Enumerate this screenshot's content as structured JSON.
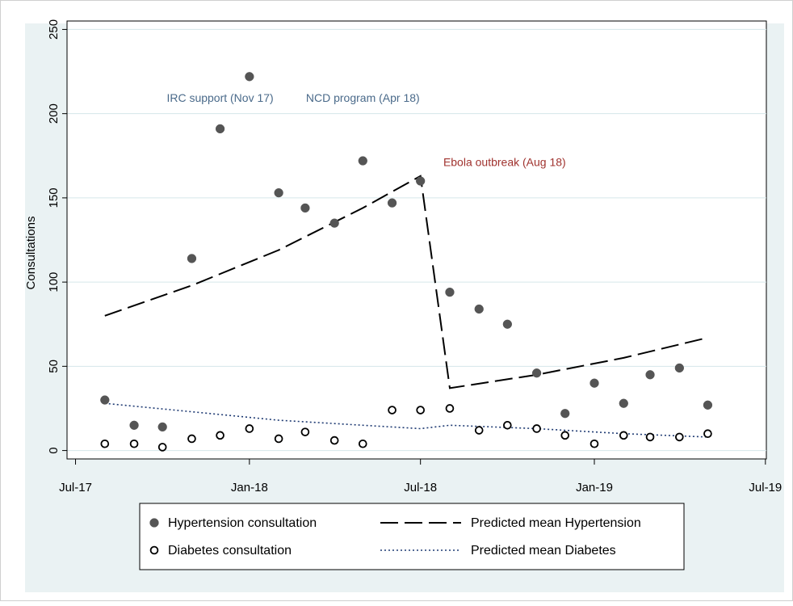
{
  "chart_data": {
    "type": "scatter",
    "ylabel": "Consultations",
    "xlabel": "",
    "x_axis": {
      "type": "date",
      "ticks": [
        {
          "date": "2017-07-01",
          "label": "Jul-17"
        },
        {
          "date": "2018-01-01",
          "label": "Jan-18"
        },
        {
          "date": "2018-07-01",
          "label": "Jul-18"
        },
        {
          "date": "2019-01-01",
          "label": "Jan-19"
        },
        {
          "date": "2019-07-01",
          "label": "Jul-19"
        }
      ],
      "range": [
        "2017-06-22",
        "2019-07-02"
      ]
    },
    "y_axis": {
      "range": [
        -5,
        255
      ],
      "ticks": [
        0,
        50,
        100,
        150,
        200,
        250
      ]
    },
    "grid": true,
    "series": [
      {
        "name": "Hypertension consultation",
        "kind": "points",
        "marker": "filled-circle",
        "color": "#555555",
        "points": [
          {
            "x": "2017-08-01",
            "y": 30
          },
          {
            "x": "2017-09-01",
            "y": 15
          },
          {
            "x": "2017-10-01",
            "y": 14
          },
          {
            "x": "2017-11-01",
            "y": 114
          },
          {
            "x": "2017-12-01",
            "y": 191
          },
          {
            "x": "2018-01-01",
            "y": 222
          },
          {
            "x": "2018-02-01",
            "y": 153
          },
          {
            "x": "2018-03-01",
            "y": 144
          },
          {
            "x": "2018-04-01",
            "y": 135
          },
          {
            "x": "2018-05-01",
            "y": 172
          },
          {
            "x": "2018-06-01",
            "y": 147
          },
          {
            "x": "2018-07-01",
            "y": 160
          },
          {
            "x": "2018-08-01",
            "y": 94
          },
          {
            "x": "2018-09-01",
            "y": 84
          },
          {
            "x": "2018-10-01",
            "y": 75
          },
          {
            "x": "2018-11-01",
            "y": 46
          },
          {
            "x": "2018-12-01",
            "y": 22
          },
          {
            "x": "2019-01-01",
            "y": 40
          },
          {
            "x": "2019-02-01",
            "y": 28
          },
          {
            "x": "2019-03-01",
            "y": 45
          },
          {
            "x": "2019-04-01",
            "y": 49
          },
          {
            "x": "2019-05-01",
            "y": 27
          }
        ]
      },
      {
        "name": "Diabetes consultation",
        "kind": "points",
        "marker": "hollow-circle",
        "color": "#000000",
        "points": [
          {
            "x": "2017-08-01",
            "y": 4
          },
          {
            "x": "2017-09-01",
            "y": 4
          },
          {
            "x": "2017-10-01",
            "y": 2
          },
          {
            "x": "2017-11-01",
            "y": 7
          },
          {
            "x": "2017-12-01",
            "y": 9
          },
          {
            "x": "2018-01-01",
            "y": 13
          },
          {
            "x": "2018-02-01",
            "y": 7
          },
          {
            "x": "2018-03-01",
            "y": 11
          },
          {
            "x": "2018-04-01",
            "y": 6
          },
          {
            "x": "2018-05-01",
            "y": 4
          },
          {
            "x": "2018-06-01",
            "y": 24
          },
          {
            "x": "2018-07-01",
            "y": 24
          },
          {
            "x": "2018-08-01",
            "y": 25
          },
          {
            "x": "2018-09-01",
            "y": 12
          },
          {
            "x": "2018-10-01",
            "y": 15
          },
          {
            "x": "2018-11-01",
            "y": 13
          },
          {
            "x": "2018-12-01",
            "y": 9
          },
          {
            "x": "2019-01-01",
            "y": 4
          },
          {
            "x": "2019-02-01",
            "y": 9
          },
          {
            "x": "2019-03-01",
            "y": 8
          },
          {
            "x": "2019-04-01",
            "y": 8
          },
          {
            "x": "2019-05-01",
            "y": 10
          }
        ]
      },
      {
        "name": "Predicted mean Hypertension",
        "kind": "line",
        "style": "long-dash",
        "color": "#000000",
        "points": [
          {
            "x": "2017-08-01",
            "y": 80
          },
          {
            "x": "2017-11-01",
            "y": 98
          },
          {
            "x": "2018-02-01",
            "y": 119
          },
          {
            "x": "2018-05-01",
            "y": 144
          },
          {
            "x": "2018-07-01",
            "y": 163
          },
          {
            "x": "2018-08-01",
            "y": 37
          },
          {
            "x": "2018-11-01",
            "y": 45
          },
          {
            "x": "2019-02-01",
            "y": 55
          },
          {
            "x": "2019-05-01",
            "y": 67
          }
        ]
      },
      {
        "name": "Predicted mean Diabetes",
        "kind": "line",
        "style": "dotted",
        "color": "#1f3b73",
        "points": [
          {
            "x": "2017-08-01",
            "y": 28
          },
          {
            "x": "2017-11-01",
            "y": 23
          },
          {
            "x": "2018-02-01",
            "y": 18
          },
          {
            "x": "2018-05-01",
            "y": 15
          },
          {
            "x": "2018-07-01",
            "y": 13
          },
          {
            "x": "2018-08-01",
            "y": 15
          },
          {
            "x": "2018-11-01",
            "y": 13
          },
          {
            "x": "2019-02-01",
            "y": 10
          },
          {
            "x": "2019-05-01",
            "y": 8
          }
        ]
      }
    ],
    "annotations": [
      {
        "text": "IRC support (Nov 17)",
        "x": "2017-12-01",
        "y": 207,
        "color": "#4a6a8a"
      },
      {
        "text": "NCD program (Apr 18)",
        "x": "2018-05-01",
        "y": 207,
        "color": "#4a6a8a"
      },
      {
        "text": "Ebola outbreak (Aug 18)",
        "x": "2018-09-28",
        "y": 169,
        "color": "#a0332f"
      }
    ],
    "legend": {
      "placement": "bottom"
    }
  }
}
